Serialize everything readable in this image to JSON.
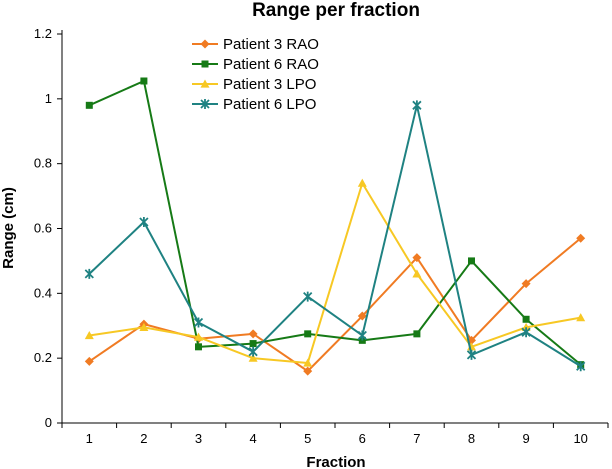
{
  "chart_data": {
    "type": "line",
    "title": "Range per fraction",
    "xlabel": "Fraction",
    "ylabel": "Range (cm)",
    "x": [
      1,
      2,
      3,
      4,
      5,
      6,
      7,
      8,
      9,
      10
    ],
    "xticks": [
      "1",
      "2",
      "3",
      "4",
      "5",
      "6",
      "7",
      "8",
      "9",
      "10"
    ],
    "ylim": [
      0,
      1.2
    ],
    "yticks": [
      "0",
      "0.2",
      "0.4",
      "0.6",
      "0.8",
      "1",
      "1.2"
    ],
    "grid": false,
    "legend_position": "top-center",
    "series": [
      {
        "name": "Patient 3 RAO",
        "color": "#f07b23",
        "marker": "diamond",
        "values": [
          0.19,
          0.305,
          0.26,
          0.275,
          0.16,
          0.33,
          0.51,
          0.255,
          0.43,
          0.57
        ]
      },
      {
        "name": "Patient 6 RAO",
        "color": "#167a16",
        "marker": "square",
        "values": [
          0.98,
          1.055,
          0.235,
          0.245,
          0.275,
          0.255,
          0.275,
          0.5,
          0.32,
          0.18
        ]
      },
      {
        "name": "Patient 3 LPO",
        "color": "#f7c824",
        "marker": "triangle",
        "values": [
          0.27,
          0.295,
          0.265,
          0.2,
          0.185,
          0.74,
          0.46,
          0.235,
          0.295,
          0.325
        ]
      },
      {
        "name": "Patient 6 LPO",
        "color": "#1f8282",
        "marker": "star",
        "values": [
          0.46,
          0.62,
          0.31,
          0.22,
          0.39,
          0.27,
          0.98,
          0.21,
          0.28,
          0.175
        ]
      }
    ]
  }
}
